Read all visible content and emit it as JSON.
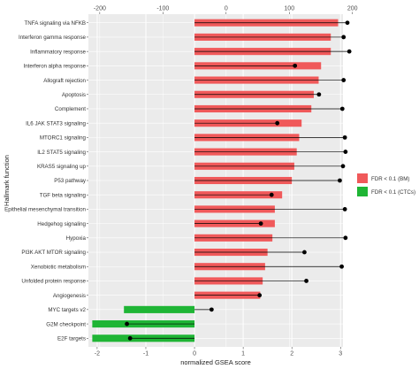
{
  "chart_data": {
    "type": "bar",
    "xlabel": "normalized GSEA score",
    "ylabel": "Hallmark function",
    "x_bottom": {
      "ticks": [
        -2,
        -1,
        0,
        1,
        2,
        3
      ],
      "range": [
        -2.18,
        3.05
      ]
    },
    "x_top": {
      "ticks": [
        -200,
        -100,
        0,
        100,
        200
      ],
      "range": [
        -218,
        185
      ]
    },
    "colors": {
      "BM": "#f0595a",
      "CTCs": "#1fb535",
      "panel": "#ebebeb",
      "grid": "#ffffff",
      "stem": "#000000"
    },
    "legend": {
      "position": "right",
      "entries": [
        {
          "label": "FDR < 0.1 (BM)",
          "color": "#f0595a"
        },
        {
          "label": "FDR < 0.1 (CTCs)",
          "color": "#1fb535"
        }
      ]
    },
    "series": [
      {
        "name": "FDR < 0.1 (BM)",
        "categories": [
          "TNFA signaling via NFKB",
          "Interferon gamma response",
          "Inflammatory response",
          "Interferon alpha response",
          "Allograft rejection",
          "Apoptosis",
          "Complement",
          "IL6 JAK STAT3 signaling",
          "MTORC1 signaling",
          "IL2 STAT5 signaling",
          "KRAS5 signaling up",
          "P53 pathway",
          "TGF beta signaling",
          "Epithelial mesenchymal transition",
          "Hedgehog signaling",
          "Hypoxia",
          "PI3K AKT MTOR signaling",
          "Xenobiotic metabolism",
          "Unfolded protein response",
          "Angiogenesis"
        ],
        "bar_values": [
          2.95,
          2.8,
          2.8,
          2.6,
          2.55,
          2.45,
          2.4,
          2.2,
          2.15,
          2.1,
          2.05,
          2.0,
          1.8,
          1.65,
          1.65,
          1.6,
          1.5,
          1.45,
          1.4,
          1.35
        ],
        "point_values": [
          192,
          186,
          195,
          109,
          186,
          147,
          184,
          81,
          188,
          189,
          185,
          180,
          72,
          188,
          55,
          189,
          124,
          183,
          127,
          53
        ]
      },
      {
        "name": "FDR < 0.1 (CTCs)",
        "categories": [
          "MYC targets v2",
          "G2M checkpoint",
          "E2F targets"
        ],
        "bar_values": [
          -1.45,
          -2.1,
          -2.1
        ],
        "point_values": [
          -23,
          -157,
          -152
        ]
      }
    ]
  }
}
